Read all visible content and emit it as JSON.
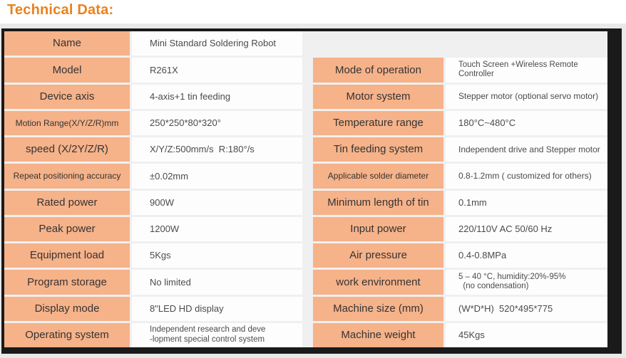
{
  "title": "Technical Data:",
  "colors": {
    "accent_orange": "#e8821f",
    "label_cell_bg": "#f6b289",
    "frame_dark": "#1a1a1a",
    "backdrop_gray": "#e9e9e9"
  },
  "table": {
    "left": [
      {
        "label": "Name",
        "value": "Mini Standard Soldering Robot"
      },
      {
        "label": "Model",
        "value": "R261X"
      },
      {
        "label": "Device axis",
        "value": "4-axis+1 tin feeding"
      },
      {
        "label": "Motion Range(X/Y/Z/R)mm",
        "value": "250*250*80*320°"
      },
      {
        "label": "speed (X/2Y/Z/R)",
        "value": "X/Y/Z:500mm/s  R:180°/s"
      },
      {
        "label": "Repeat positioning accuracy",
        "value": "±0.02mm"
      },
      {
        "label": "Rated power",
        "value": "900W"
      },
      {
        "label": "Peak power",
        "value": "1200W"
      },
      {
        "label": "Equipment load",
        "value": "5Kgs"
      },
      {
        "label": "Program storage",
        "value": "No limited"
      },
      {
        "label": "Display mode",
        "value": "8\"LED HD display"
      },
      {
        "label": "Operating system",
        "value": "Independent research and deve\n-lopment special control system"
      }
    ],
    "right": [
      {
        "label": "Mode of operation",
        "value": "Touch Screen +Wireless Remote\nController"
      },
      {
        "label": "Motor system",
        "value": "Stepper motor (optional servo motor)"
      },
      {
        "label": "Temperature range",
        "value": "180°C~480°C"
      },
      {
        "label": "Tin feeding system",
        "value": "Independent drive and Stepper motor"
      },
      {
        "label": "Applicable solder diameter",
        "value": "0.8-1.2mm ( customized for others)"
      },
      {
        "label": "Minimum length of tin",
        "value": "0.1mm"
      },
      {
        "label": "Input power",
        "value": "220/110V AC 50/60 Hz"
      },
      {
        "label": "Air pressure",
        "value": "0.4-0.8MPa"
      },
      {
        "label": "work environment",
        "value": "5 – 40 °C, humidity:20%-95%\n  (no condensation)"
      },
      {
        "label": "Machine size (mm)",
        "value": "(W*D*H)  520*495*775"
      },
      {
        "label": "Machine weight",
        "value": "45Kgs"
      }
    ]
  }
}
